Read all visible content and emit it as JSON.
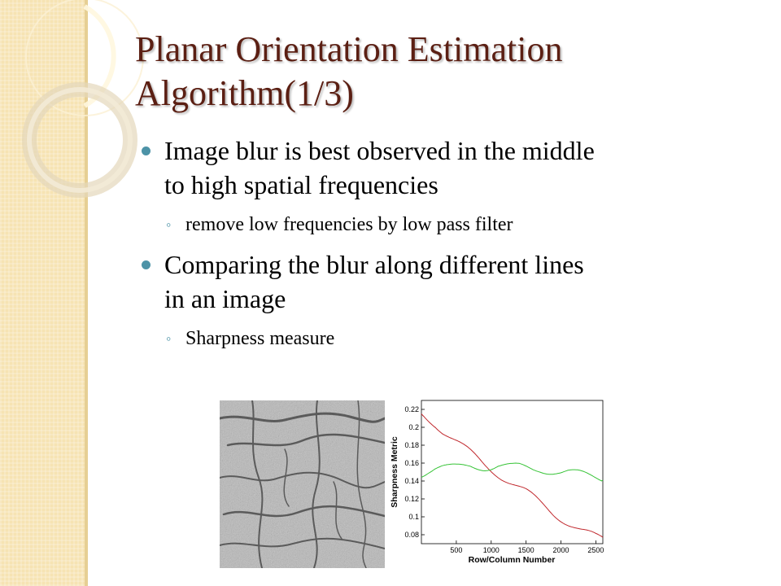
{
  "slide": {
    "title_lines": [
      "Planar Orientation Estimation",
      "Algorithm(1/3)"
    ],
    "bullets": [
      {
        "lines": [
          "Image blur is best observed in the middle",
          "to high spatial frequencies"
        ],
        "sub": "remove low frequencies by low pass filter"
      },
      {
        "lines": [
          "Comparing the blur along different lines",
          "in an image"
        ],
        "sub": "Sharpness measure"
      }
    ],
    "accent_color": "#4d93a7",
    "title_color": "#5b1f13",
    "band_color": "#f6e3b3"
  },
  "chart_data": {
    "type": "line",
    "xlabel": "Row/Column Number",
    "ylabel": "Sharpness Metric",
    "xlim": [
      0,
      2600
    ],
    "ylim": [
      0.07,
      0.23
    ],
    "xticks": [
      "500",
      "1000",
      "1500",
      "2000",
      "2500"
    ],
    "yticks": [
      "0.22",
      "0.2",
      "0.18",
      "0.16",
      "0.14",
      "0.12",
      "0.1",
      "0.08"
    ],
    "series": [
      {
        "color": "#c0282d",
        "x": [
          0,
          100,
          200,
          300,
          400,
          500,
          600,
          700,
          800,
          900,
          1000,
          1100,
          1200,
          1300,
          1400,
          1500,
          1600,
          1700,
          1800,
          1900,
          2000,
          2100,
          2200,
          2300,
          2400,
          2500,
          2600
        ],
        "values": [
          0.215,
          0.21,
          0.205,
          0.198,
          0.192,
          0.186,
          0.18,
          0.174,
          0.168,
          0.162,
          0.157,
          0.152,
          0.147,
          0.142,
          0.137,
          0.132,
          0.126,
          0.12,
          0.114,
          0.108,
          0.103,
          0.098,
          0.093,
          0.088,
          0.084,
          0.08,
          0.077
        ]
      },
      {
        "color": "#36c336",
        "x": [
          0,
          100,
          200,
          300,
          400,
          500,
          600,
          700,
          800,
          900,
          1000,
          1100,
          1200,
          1300,
          1400,
          1500,
          1600,
          1700,
          1800,
          1900,
          2000,
          2100,
          2200,
          2300,
          2400,
          2500,
          2600
        ],
        "values": [
          0.148,
          0.151,
          0.153,
          0.153,
          0.152,
          0.152,
          0.153,
          0.154,
          0.153,
          0.152,
          0.152,
          0.153,
          0.152,
          0.151,
          0.151,
          0.15,
          0.149,
          0.149,
          0.148,
          0.147,
          0.146,
          0.146,
          0.145,
          0.144,
          0.143,
          0.142,
          0.141
        ]
      }
    ]
  }
}
